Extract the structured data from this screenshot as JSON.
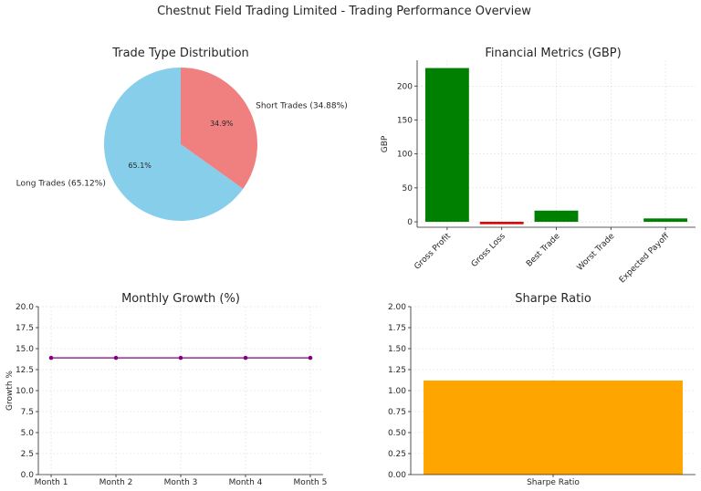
{
  "page_title": "Chestnut Field Trading Limited - Trading Performance Overview",
  "chart_data": [
    {
      "type": "pie",
      "title": "Trade Type Distribution",
      "labels": [
        "Long Trades (65.12%)",
        "Short Trades (34.88%)"
      ],
      "values": [
        65.12,
        34.88
      ],
      "pct_labels": [
        "65.1%",
        "34.9%"
      ],
      "colors": [
        "#87CEEB",
        "#F08080"
      ]
    },
    {
      "type": "bar",
      "title": "Financial Metrics (GBP)",
      "ylabel": "GBP",
      "categories": [
        "Gross Profit",
        "Gross Loss",
        "Best Trade",
        "Worst Trade",
        "Expected Payoff"
      ],
      "values": [
        226.5,
        -3.5,
        16.5,
        0,
        5
      ],
      "colors": [
        "#008000",
        "#dd0000",
        "#008000",
        "#008000",
        "#008000"
      ],
      "ylim": [
        -8,
        238
      ],
      "yticks": [
        0,
        50,
        100,
        150,
        200
      ],
      "grid": true
    },
    {
      "type": "line",
      "title": "Monthly Growth (%)",
      "ylabel": "Growth %",
      "categories": [
        "Month 1",
        "Month 2",
        "Month 3",
        "Month 4",
        "Month 5"
      ],
      "values": [
        13.9,
        13.9,
        13.9,
        13.9,
        13.9
      ],
      "color": "#800080",
      "ylim": [
        0,
        20
      ],
      "yticks": [
        "0.0",
        "2.5",
        "5.0",
        "7.5",
        "10.0",
        "12.5",
        "15.0",
        "17.5",
        "20.0"
      ],
      "grid": true
    },
    {
      "type": "bar",
      "title": "Sharpe Ratio",
      "categories": [
        "Sharpe Ratio"
      ],
      "values": [
        1.12
      ],
      "color": "#FFA500",
      "ylim": [
        0,
        2
      ],
      "yticks": [
        "0.00",
        "0.25",
        "0.50",
        "0.75",
        "1.00",
        "1.25",
        "1.50",
        "1.75",
        "2.00"
      ],
      "grid": true
    }
  ]
}
